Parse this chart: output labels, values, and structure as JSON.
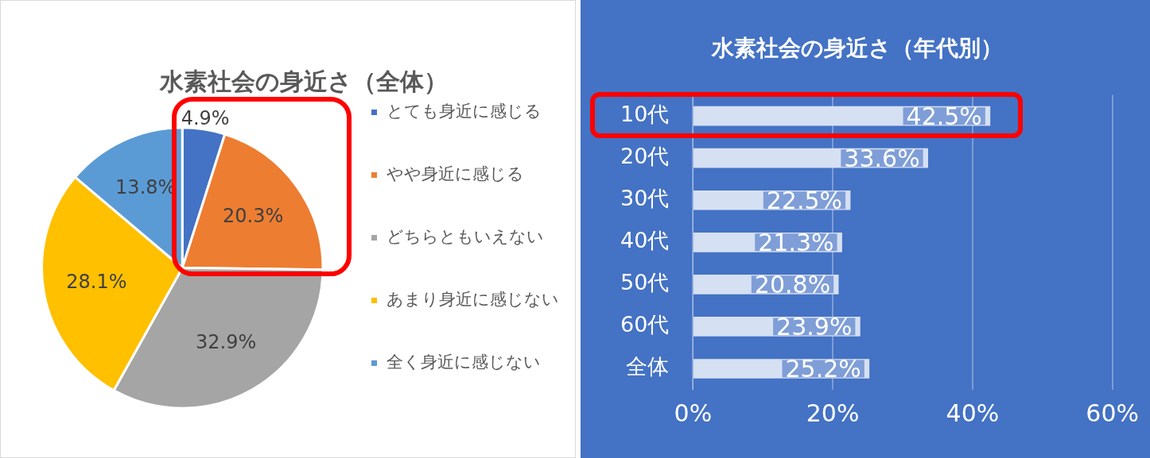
{
  "chart_data": [
    {
      "type": "pie",
      "title": "水素社会の身近さ（全体）",
      "categories": [
        "とても身近に感じる",
        "やや身近に感じる",
        "どちらともいえない",
        "あまり身近に感じない",
        "全く身近に感じない"
      ],
      "values": [
        4.9,
        20.3,
        32.9,
        28.1,
        13.8
      ],
      "colors": [
        "#4472c4",
        "#ed7d31",
        "#a5a5a5",
        "#ffc000",
        "#5b9bd5"
      ],
      "value_labels": [
        "4.9%",
        "20.3%",
        "32.9%",
        "28.1%",
        "13.8%"
      ],
      "legend": "right"
    },
    {
      "type": "bar",
      "orientation": "horizontal",
      "title": "水素社会の身近さ（年代別）",
      "categories": [
        "10代",
        "20代",
        "30代",
        "40代",
        "50代",
        "60代",
        "全体"
      ],
      "values": [
        42.5,
        33.6,
        22.5,
        21.3,
        20.8,
        23.9,
        25.2
      ],
      "color": "#d6e0f3",
      "value_labels": [
        "42.5%",
        "33.6%",
        "22.5%",
        "21.3%",
        "20.8%",
        "23.9%",
        "25.2%"
      ],
      "xlim": [
        0,
        60
      ],
      "xticks": [
        {
          "value": 0,
          "label": "0%"
        },
        {
          "value": 20,
          "label": "20%"
        },
        {
          "value": 40,
          "label": "40%"
        },
        {
          "value": 60,
          "label": "60%"
        }
      ],
      "grid": "x",
      "legend": false
    }
  ]
}
